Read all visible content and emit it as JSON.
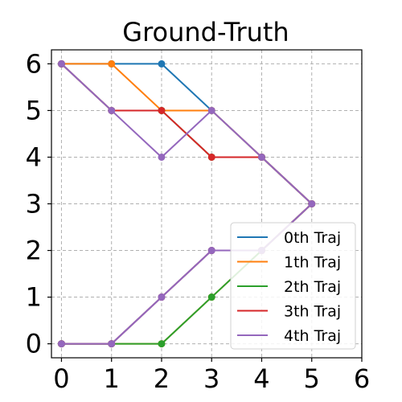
{
  "chart_data": {
    "type": "line",
    "title": "Ground-Truth",
    "xlabel": "",
    "ylabel": "",
    "xlim": [
      -0.2,
      6
    ],
    "ylim": [
      -0.3,
      6.3
    ],
    "xticks": [
      "0",
      "1",
      "2",
      "3",
      "4",
      "5",
      "6"
    ],
    "yticks": [
      "0",
      "1",
      "2",
      "3",
      "4",
      "5",
      "6"
    ],
    "grid": true,
    "legend_position": "lower-right",
    "series": [
      {
        "name": "0th Traj",
        "color": "#1f77b4",
        "points": [
          [
            0,
            6
          ],
          [
            1,
            6
          ],
          [
            2,
            6
          ],
          [
            3,
            5
          ],
          [
            4,
            4
          ],
          [
            5,
            3
          ],
          [
            4,
            2
          ],
          [
            3,
            2
          ],
          [
            2,
            1
          ],
          [
            1,
            0
          ],
          [
            0,
            0
          ]
        ]
      },
      {
        "name": "1th Traj",
        "color": "#ff7f0e",
        "points": [
          [
            0,
            6
          ],
          [
            1,
            6
          ],
          [
            2,
            5
          ],
          [
            3,
            5
          ],
          [
            4,
            4
          ],
          [
            5,
            3
          ],
          [
            4,
            2
          ],
          [
            3,
            1
          ],
          [
            2,
            0
          ],
          [
            1,
            0
          ],
          [
            0,
            0
          ]
        ]
      },
      {
        "name": "2th Traj",
        "color": "#2ca02c",
        "points": [
          [
            0,
            6
          ],
          [
            1,
            5
          ],
          [
            2,
            5
          ],
          [
            3,
            4
          ],
          [
            4,
            4
          ],
          [
            5,
            3
          ],
          [
            4,
            2
          ],
          [
            3,
            1
          ],
          [
            2,
            0
          ],
          [
            1,
            0
          ],
          [
            0,
            0
          ]
        ]
      },
      {
        "name": "3th Traj",
        "color": "#d62728",
        "points": [
          [
            0,
            6
          ],
          [
            1,
            5
          ],
          [
            2,
            5
          ],
          [
            3,
            4
          ],
          [
            4,
            4
          ],
          [
            5,
            3
          ],
          [
            4,
            2
          ],
          [
            3,
            2
          ],
          [
            2,
            1
          ],
          [
            1,
            0
          ],
          [
            0,
            0
          ]
        ]
      },
      {
        "name": "4th Traj",
        "color": "#9467bd",
        "points": [
          [
            0,
            6
          ],
          [
            1,
            5
          ],
          [
            2,
            4
          ],
          [
            3,
            5
          ],
          [
            4,
            4
          ],
          [
            5,
            3
          ],
          [
            4,
            2
          ],
          [
            3,
            2
          ],
          [
            2,
            1
          ],
          [
            1,
            0
          ],
          [
            0,
            0
          ]
        ]
      }
    ]
  }
}
